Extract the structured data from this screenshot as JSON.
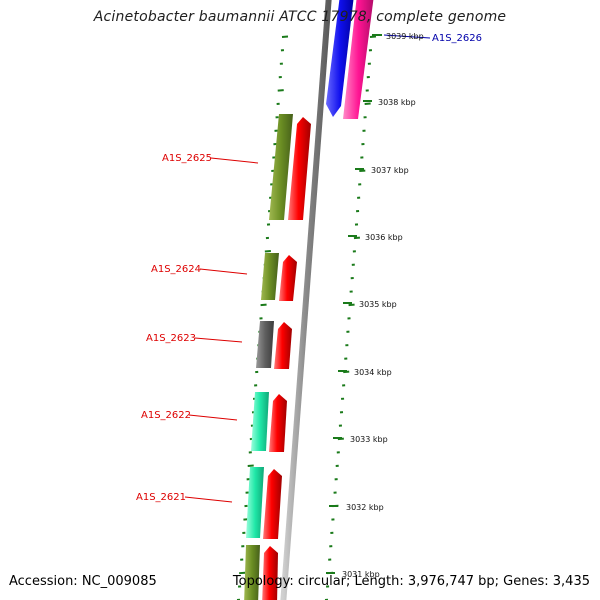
{
  "title": "Acinetobacter baumannii ATCC 17978, complete genome",
  "footer": {
    "accession": "Accession: NC_009085",
    "topology": "Topology: circular; Length: 3,976,747 bp; Genes: 3,435"
  },
  "scale_ticks": [
    "3039 kbp",
    "3038 kbp",
    "3037 kbp",
    "3036 kbp",
    "3035 kbp",
    "3034 kbp",
    "3033 kbp",
    "3032 kbp",
    "3031 kbp"
  ],
  "gene_labels": [
    {
      "text": "A1S_2626",
      "color": "#0000aa"
    },
    {
      "text": "A1S_2625",
      "color": "#dd0000"
    },
    {
      "text": "A1S_2624",
      "color": "#dd0000"
    },
    {
      "text": "A1S_2623",
      "color": "#dd0000"
    },
    {
      "text": "A1S_2622",
      "color": "#dd0000"
    },
    {
      "text": "A1S_2621",
      "color": "#dd0000"
    }
  ],
  "colors": {
    "backbone": "#8a8a8a",
    "cog_olive": "#6b8e23",
    "cog_gray": "#606060",
    "cog_teal": "#20e8a8",
    "cog_blue": "#1010ee",
    "cog_magenta": "#ff1493",
    "cds": "#ee0000",
    "ticks": "#1a7a1a"
  }
}
